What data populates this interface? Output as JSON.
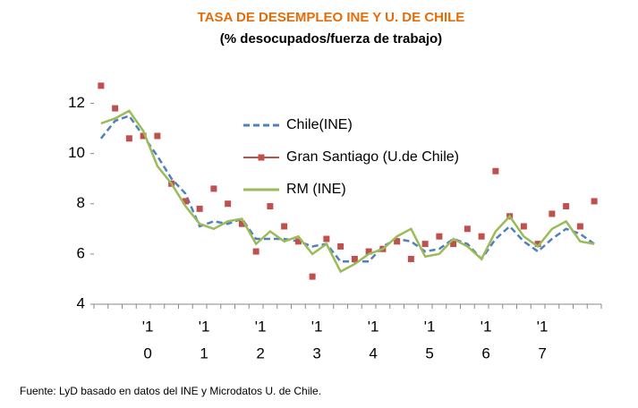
{
  "chart_data": {
    "type": "line",
    "title": "TASA  DE  DESEMPLEO INE Y U. DE CHILE",
    "subtitle": "(% desocupados/fuerza de trabajo)",
    "source": "Fuente: LyD basado en datos del INE y Microdatos  U. de Chile.",
    "categories": [
      null,
      null,
      null,
      [
        "'1",
        "0"
      ],
      null,
      null,
      null,
      [
        "'1",
        "1"
      ],
      null,
      null,
      null,
      [
        "'1",
        "2"
      ],
      null,
      null,
      null,
      [
        "'1",
        "3"
      ],
      null,
      null,
      null,
      [
        "'1",
        "4"
      ],
      null,
      null,
      null,
      [
        "'1",
        "5"
      ],
      null,
      null,
      null,
      [
        "'1",
        "6"
      ],
      null,
      null,
      null,
      [
        "'1",
        "7"
      ],
      null,
      null,
      null,
      null
    ],
    "ylim": [
      4,
      12.8
    ],
    "yticks": [
      4,
      6,
      8,
      10,
      12
    ],
    "series": [
      {
        "name": "Chile(INE)",
        "color": "#4f81bd",
        "style": "dashed",
        "values": [
          10.6,
          11.3,
          11.5,
          10.7,
          9.9,
          9.0,
          8.4,
          7.1,
          7.3,
          7.2,
          7.4,
          6.6,
          6.6,
          6.6,
          6.5,
          6.3,
          6.4,
          5.7,
          5.7,
          5.7,
          6.3,
          6.6,
          6.5,
          6.1,
          6.2,
          6.6,
          6.4,
          5.8,
          6.6,
          7.1,
          6.5,
          6.1,
          6.6,
          7.0,
          6.8,
          6.4
        ]
      },
      {
        "name": "Gran  Santiago (U.de Chile)",
        "color": "#c0504d",
        "style": "markers",
        "values": [
          12.7,
          11.8,
          10.6,
          10.7,
          10.7,
          8.8,
          8.1,
          7.8,
          8.6,
          8.0,
          7.2,
          6.1,
          7.9,
          7.1,
          6.5,
          5.1,
          6.6,
          6.3,
          5.8,
          6.1,
          6.2,
          6.5,
          5.8,
          6.4,
          6.7,
          6.4,
          7.0,
          6.7,
          9.3,
          7.5,
          7.1,
          6.4,
          7.6,
          7.9,
          7.1,
          8.1
        ]
      },
      {
        "name": "RM (INE)",
        "color": "#9bbb59",
        "style": "solid",
        "values": [
          11.2,
          11.4,
          11.7,
          10.9,
          9.5,
          8.8,
          7.9,
          7.2,
          7.0,
          7.3,
          7.4,
          6.4,
          6.9,
          6.5,
          6.7,
          6.0,
          6.4,
          5.3,
          5.6,
          6.0,
          6.2,
          6.7,
          7.0,
          5.9,
          6.0,
          6.6,
          6.3,
          5.8,
          6.9,
          7.5,
          6.7,
          6.3,
          7.0,
          7.3,
          6.5,
          6.4
        ]
      }
    ]
  }
}
